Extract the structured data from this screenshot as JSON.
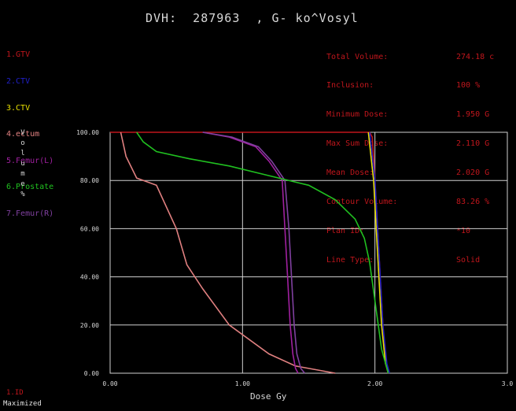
{
  "header": {
    "title": "DVH:  287963  , G- ko^Vosyl"
  },
  "legend": {
    "items": [
      {
        "label": "1.GTV",
        "color": "#c0161c"
      },
      {
        "label": "2.CTV",
        "color": "#2020c8"
      },
      {
        "label": "3.CTV",
        "color": "#e8e000"
      },
      {
        "label": "4.ectum",
        "color": "#e08080"
      },
      {
        "label": "5.Femur(L)",
        "color": "#a020a0"
      },
      {
        "label": "6.Prostate",
        "color": "#20c020"
      },
      {
        "label": "7.Femur(R)",
        "color": "#8040a0"
      }
    ]
  },
  "stats": {
    "labels": [
      "Total Volume:",
      "Inclusion:",
      "Minimum Dose:",
      "Max Sum Dose:",
      "Mean Dose:",
      "Contour Volume:",
      "Plan ID:",
      "Line Type:"
    ],
    "values": [
      "274.18 c",
      "100 %",
      "1.950 G",
      "2.110 G",
      "2.020 G",
      "83.26 %",
      "*10",
      "Solid"
    ]
  },
  "axes": {
    "ylabel": "Volume %",
    "xlabel": "Dose Gy"
  },
  "footer": {
    "line1": "1.ID",
    "line2": "Maximized"
  },
  "chart_data": {
    "type": "line",
    "xlabel": "Dose Gy",
    "ylabel": "Volume %",
    "xlim": [
      0,
      3
    ],
    "ylim": [
      0,
      100
    ],
    "x_ticks": [
      "0.00",
      "1.00",
      "2.00",
      "3.0"
    ],
    "y_ticks": [
      "0.00",
      "20.00",
      "40.00",
      "60.00",
      "80.00",
      "100.00"
    ],
    "grid": true,
    "series": [
      {
        "name": "1.GTV",
        "color": "#c0161c",
        "x": [
          0,
          1.96,
          1.98,
          2.0,
          2.02,
          2.04,
          2.06,
          2.08,
          2.1
        ],
        "y": [
          100,
          100,
          98,
          80,
          60,
          40,
          20,
          4,
          0
        ]
      },
      {
        "name": "3.CTV",
        "color": "#e8e000",
        "x": [
          1.95,
          1.99,
          2.01,
          2.03,
          2.05,
          2.08,
          2.11
        ],
        "y": [
          100,
          80,
          60,
          40,
          20,
          4,
          0
        ]
      },
      {
        "name": "2.CTV",
        "color": "#2020c8",
        "x": [
          1.96,
          2.0,
          2.02,
          2.04,
          2.06,
          2.09,
          2.11
        ],
        "y": [
          100,
          80,
          60,
          40,
          20,
          4,
          0
        ]
      },
      {
        "name": "4.ectum",
        "color": "#e08080",
        "x": [
          0.08,
          0.12,
          0.2,
          0.35,
          0.5,
          0.58,
          0.7,
          0.9,
          1.2,
          1.4,
          1.5,
          1.7
        ],
        "y": [
          100,
          90,
          81,
          78,
          60,
          45,
          35,
          20,
          8,
          3,
          2,
          0
        ]
      },
      {
        "name": "5.Femur(L)",
        "color": "#a020a0",
        "x": [
          0.7,
          0.9,
          1.1,
          1.2,
          1.3,
          1.32,
          1.34,
          1.36,
          1.38,
          1.4,
          1.42
        ],
        "y": [
          100,
          98,
          94,
          88,
          80,
          60,
          40,
          20,
          8,
          2,
          0
        ]
      },
      {
        "name": "7.Femur(R)",
        "color": "#8040a0",
        "x": [
          0.7,
          0.92,
          1.12,
          1.22,
          1.32,
          1.35,
          1.37,
          1.39,
          1.41,
          1.44,
          1.47
        ],
        "y": [
          100,
          98,
          94,
          88,
          80,
          60,
          40,
          20,
          8,
          2,
          0
        ]
      },
      {
        "name": "6.Prostate",
        "color": "#20c020",
        "x": [
          0.2,
          0.25,
          0.35,
          0.6,
          0.9,
          1.2,
          1.5,
          1.7,
          1.85,
          1.92,
          1.96,
          2.0,
          2.05,
          2.1
        ],
        "y": [
          100,
          96,
          92,
          89,
          86,
          82,
          78,
          72,
          64,
          56,
          46,
          30,
          10,
          0
        ]
      }
    ]
  }
}
